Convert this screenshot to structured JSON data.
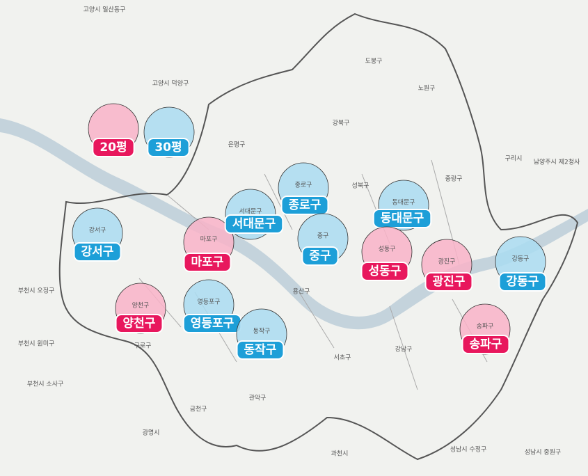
{
  "legend": [
    {
      "label": "20평",
      "color": "#e8175d",
      "fill": "#f9b3c8"
    },
    {
      "label": "30평",
      "color": "#1d9fd8",
      "fill": "#aadcf1"
    }
  ],
  "markers": [
    {
      "name": "강서구",
      "area_label": "강서구",
      "size": "30평"
    },
    {
      "name": "마포구",
      "area_label": "마포구",
      "size": "20평"
    },
    {
      "name": "서대문구",
      "area_label": "서대문구",
      "size": "30평"
    },
    {
      "name": "종로구",
      "area_label": "종로구",
      "size": "30평"
    },
    {
      "name": "중구",
      "area_label": "중구",
      "size": "30평"
    },
    {
      "name": "동대문구",
      "area_label": "동대문구",
      "size": "30평"
    },
    {
      "name": "성동구",
      "area_label": "성동구",
      "size": "20평"
    },
    {
      "name": "광진구",
      "area_label": "광진구",
      "size": "20평"
    },
    {
      "name": "강동구",
      "area_label": "강동구",
      "size": "30평"
    },
    {
      "name": "양천구",
      "area_label": "양천구",
      "size": "20평"
    },
    {
      "name": "영등포구",
      "area_label": "영등포구",
      "size": "30평"
    },
    {
      "name": "동작구",
      "area_label": "동작구",
      "size": "30평"
    },
    {
      "name": "송파구",
      "area_label": "송파구",
      "size": "20평"
    }
  ],
  "place_labels": [
    "고양시 일산동구",
    "고양시 덕양구",
    "은평구",
    "도봉구",
    "노원구",
    "강북구",
    "성북구",
    "중랑구",
    "구리시",
    "남양주시 제2청사",
    "용산구",
    "서초구",
    "강남구",
    "관악구",
    "금천구",
    "구로구",
    "부천시 오정구",
    "부천시 원미구",
    "부천시 소사구",
    "광명시",
    "과천시",
    "성남시 수정구",
    "성남시 중원구"
  ]
}
